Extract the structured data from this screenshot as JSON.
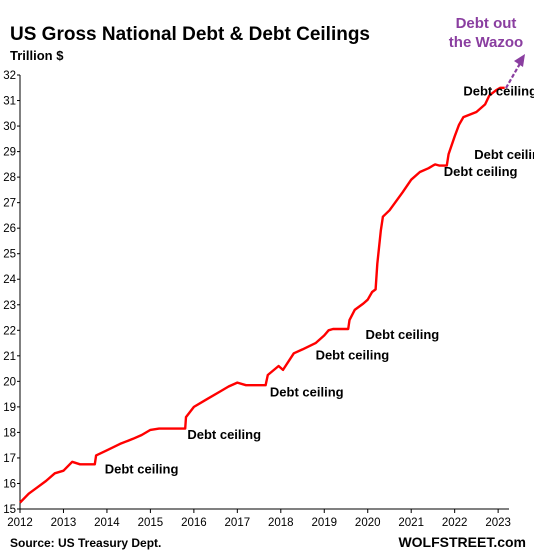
{
  "chart_data": {
    "type": "line",
    "title": "US Gross National Debt & Debt Ceilings",
    "ylabel": "Trillion $",
    "xlabel": "",
    "xlim": [
      2012,
      2023.25
    ],
    "ylim": [
      15,
      32
    ],
    "yticks": [
      15,
      16,
      17,
      18,
      19,
      20,
      21,
      22,
      23,
      24,
      25,
      26,
      27,
      28,
      29,
      30,
      31,
      32
    ],
    "xticks": [
      "2012",
      "2013",
      "2014",
      "2015",
      "2016",
      "2017",
      "2018",
      "2019",
      "2020",
      "2021",
      "2022",
      "2023"
    ],
    "grid": false,
    "line_color": "#ff0000",
    "series": [
      {
        "x": [
          2012.0,
          2012.2,
          2012.4,
          2012.6,
          2012.8,
          2013.0,
          2013.2,
          2013.38,
          2013.72,
          2013.75,
          2014.0,
          2014.3,
          2014.6,
          2014.8,
          2015.0,
          2015.2,
          2015.8,
          2015.82,
          2016.0,
          2016.3,
          2016.6,
          2016.8,
          2017.0,
          2017.2,
          2017.65,
          2017.7,
          2017.95,
          2018.05,
          2018.3,
          2018.5,
          2018.8,
          2019.0,
          2019.1,
          2019.2,
          2019.55,
          2019.58,
          2019.7,
          2019.9,
          2020.0,
          2020.1,
          2020.18,
          2020.22,
          2020.3,
          2020.35,
          2020.5,
          2020.8,
          2021.0,
          2021.2,
          2021.4,
          2021.5,
          2021.55,
          2021.65,
          2021.82,
          2021.86,
          2022.0,
          2022.1,
          2022.2,
          2022.5,
          2022.7,
          2022.8,
          2022.95,
          2023.05,
          2023.15
        ],
        "values": [
          15.25,
          15.6,
          15.85,
          16.1,
          16.4,
          16.5,
          16.85,
          16.75,
          16.75,
          17.1,
          17.3,
          17.55,
          17.75,
          17.9,
          18.1,
          18.15,
          18.15,
          18.6,
          19.0,
          19.3,
          19.6,
          19.8,
          19.95,
          19.85,
          19.85,
          20.25,
          20.6,
          20.45,
          21.1,
          21.25,
          21.5,
          21.8,
          22.0,
          22.05,
          22.05,
          22.4,
          22.8,
          23.05,
          23.2,
          23.5,
          23.6,
          24.6,
          25.9,
          26.45,
          26.7,
          27.4,
          27.9,
          28.2,
          28.35,
          28.45,
          28.5,
          28.45,
          28.45,
          28.9,
          29.6,
          30.05,
          30.35,
          30.55,
          30.85,
          31.2,
          31.4,
          31.5,
          31.5
        ]
      }
    ],
    "annotations": [
      {
        "text": "Debt ceiling",
        "x": 2013.95,
        "y": 16.4
      },
      {
        "text": "Debt ceiling",
        "x": 2015.85,
        "y": 17.75
      },
      {
        "text": "Debt ceiling",
        "x": 2017.75,
        "y": 19.4
      },
      {
        "text": "Debt ceiling",
        "x": 2018.8,
        "y": 20.85
      },
      {
        "text": "Debt ceiling",
        "x": 2019.95,
        "y": 21.65
      },
      {
        "text": "Debt ceiling",
        "x": 2021.75,
        "y": 28.05
      },
      {
        "text": "Debt ceiling",
        "x": 2022.45,
        "y": 28.7
      },
      {
        "text": "Debt ceiling",
        "x": 2022.2,
        "y": 31.2
      }
    ],
    "callout": {
      "line1": "Debt out",
      "line2": "the Wazoo"
    },
    "source": "Source: US Treasury Dept.",
    "brand": "WOLFSTREET.com"
  }
}
